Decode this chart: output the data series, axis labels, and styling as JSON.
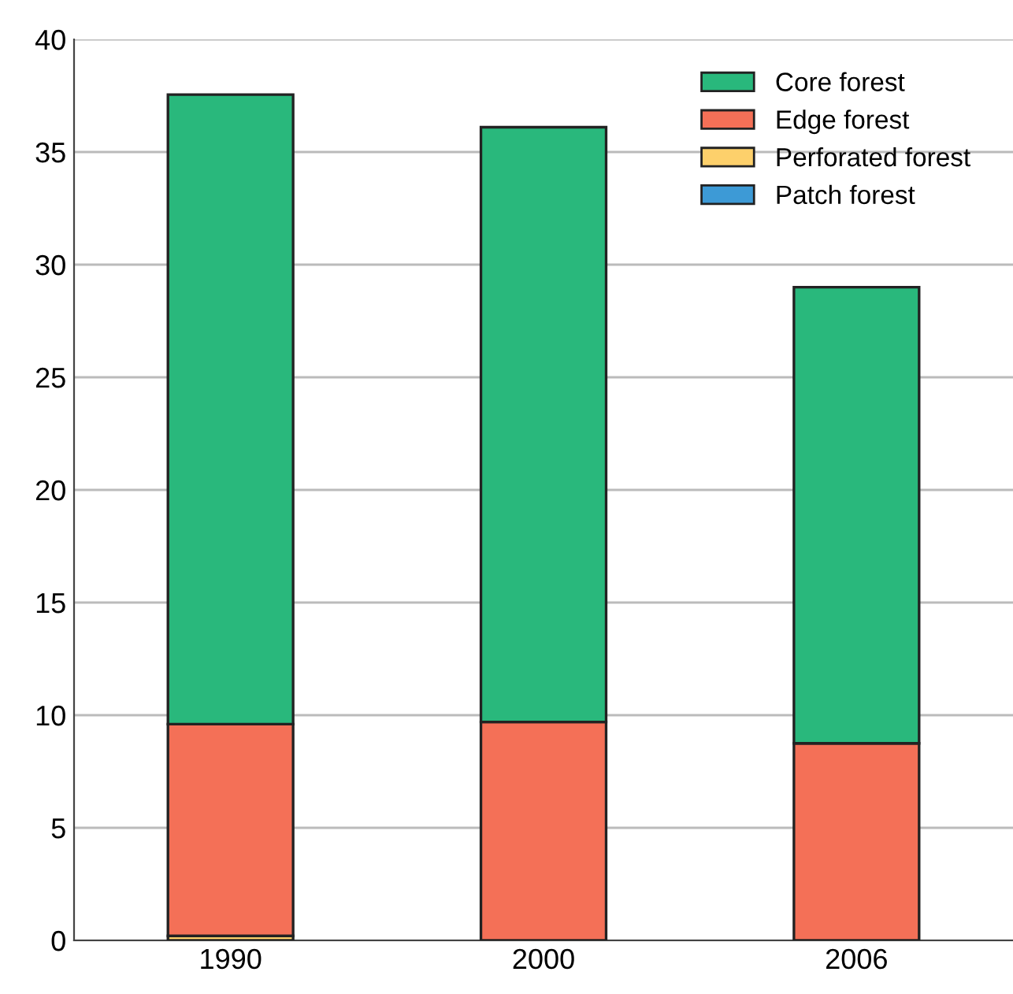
{
  "chart_data": {
    "type": "bar",
    "stacked": true,
    "categories": [
      "1990",
      "2000",
      "2006"
    ],
    "series": [
      {
        "name": "Patch forest",
        "color": "#3d9ad6",
        "values": [
          null,
          null,
          null
        ]
      },
      {
        "name": "Perforated forest",
        "color": "#fdd06b",
        "values": [
          0.2,
          null,
          null
        ]
      },
      {
        "name": "Edge forest",
        "color": "#f47057",
        "values": [
          9.4,
          9.7,
          8.75
        ]
      },
      {
        "name": "Core forest",
        "color": "#29b87c",
        "values": [
          27.95,
          26.4,
          20.25
        ]
      }
    ],
    "ylim": [
      0,
      40
    ],
    "yticks": [
      0,
      5,
      10,
      15,
      20,
      25,
      30,
      35,
      40
    ],
    "grid": "y",
    "legend": "top right"
  }
}
